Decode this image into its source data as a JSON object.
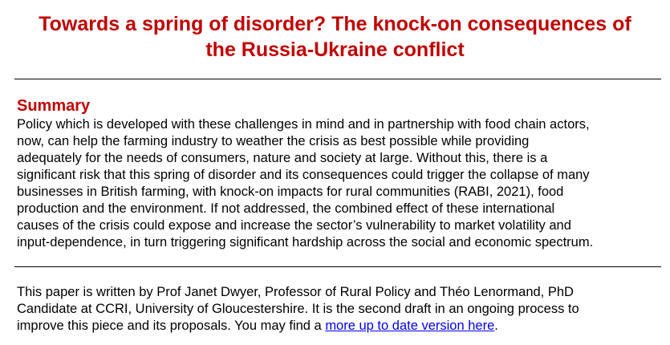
{
  "document": {
    "title_lines": [
      "Towards a spring of disorder? The knock-on consequences of",
      "the Russia-Ukraine conflict"
    ],
    "summary": {
      "heading": "Summary",
      "lines": [
        "Policy which is developed with these challenges in mind and in partnership with food chain actors,",
        "now, can help the farming industry to weather the crisis as best possible while providing",
        "adequately for the needs of consumers, nature and society at large. Without this, there is a",
        "significant risk that this spring of disorder and its consequences could trigger the collapse of many",
        "businesses in British farming, with knock-on impacts for rural communities (RABI, 2021), food",
        "production and the environment. If not addressed, the combined effect of these international",
        "causes of the crisis could expose and increase the sector’s vulnerability to market volatility and",
        "input-dependence, in turn triggering significant hardship across the social and economic spectrum."
      ]
    },
    "author_note": {
      "line1": "This paper is written by Prof Janet Dwyer, Professor of Rural Policy and Théo Lenormand, PhD",
      "line2": "Candidate at CCRI, University of Gloucestershire. It is the second draft in an ongoing process to",
      "line3_prefix": "improve this piece and its proposals. You may find a ",
      "link_text": "more up to date version here",
      "line3_suffix": "."
    }
  },
  "colors": {
    "heading": "#c00000",
    "link": "#0000ee",
    "text": "#000000"
  }
}
